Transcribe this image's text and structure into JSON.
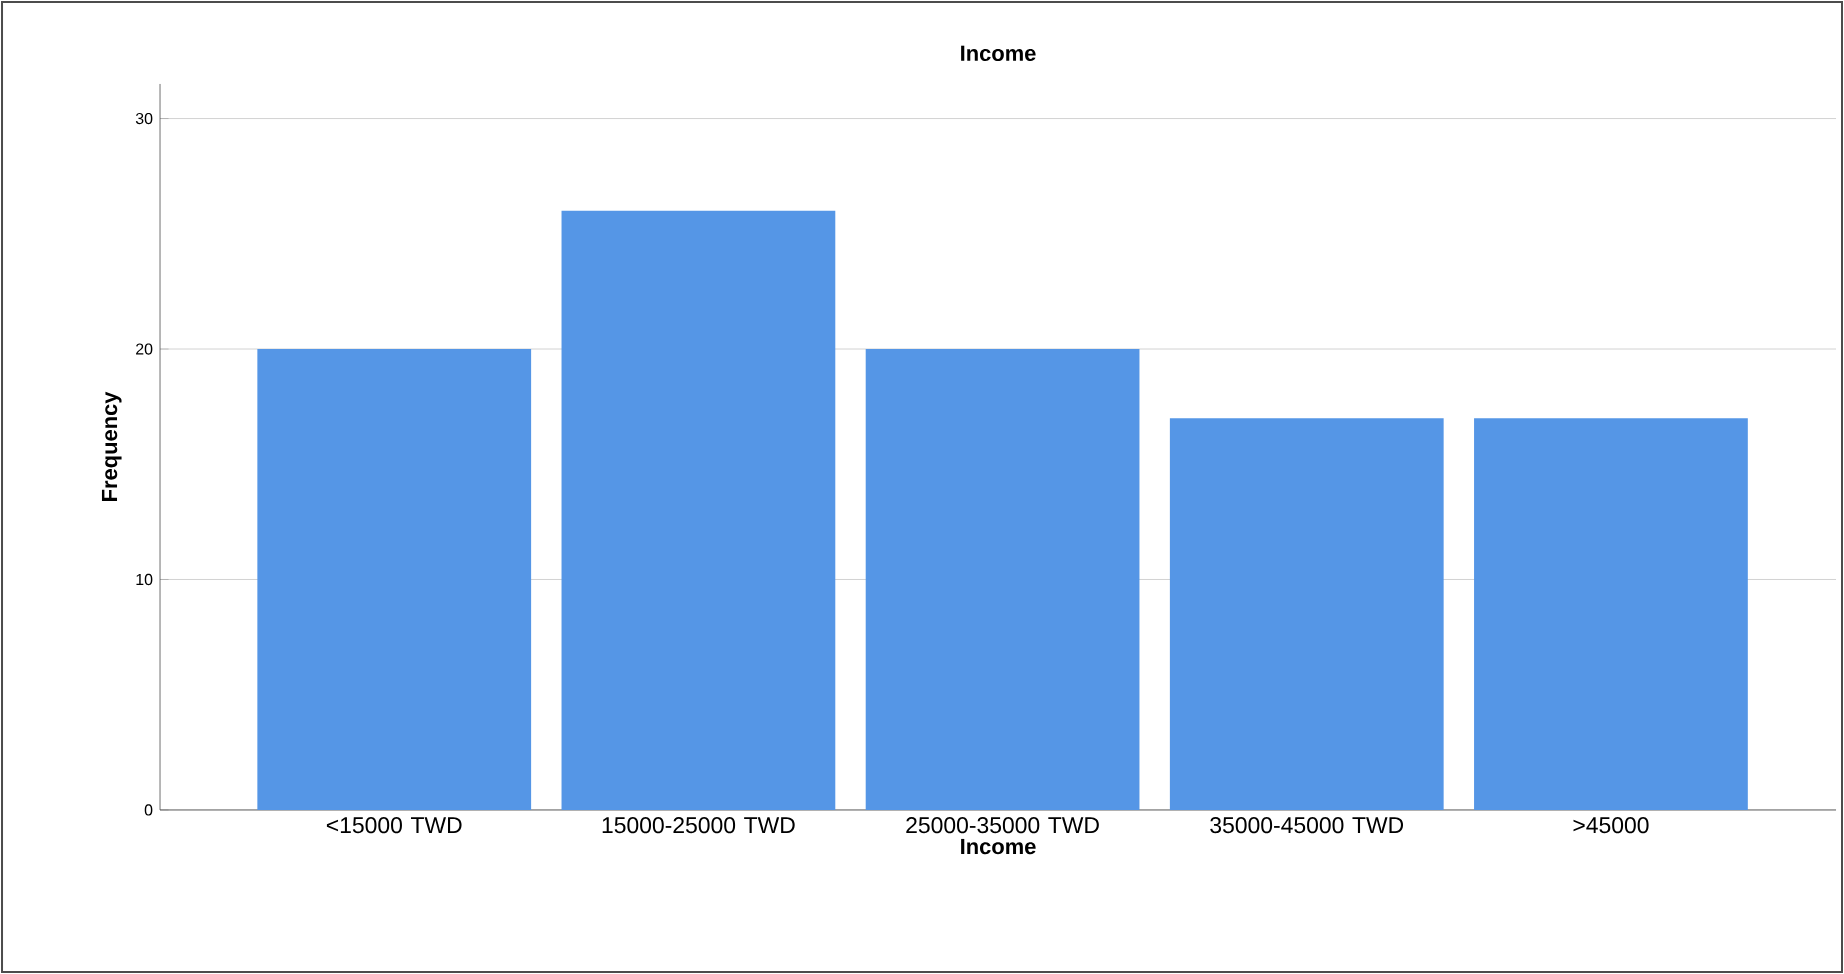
{
  "chart_data": {
    "type": "bar",
    "title": "Income",
    "xlabel": "Income",
    "ylabel": "Frequency",
    "categories": [
      "<15000 TWD",
      "15000-25000 TWD",
      "25000-35000 TWD",
      "35000-45000 TWD",
      ">45000"
    ],
    "values": [
      20,
      26,
      20,
      17,
      17
    ],
    "color": "#5596e6",
    "ylim": [
      0,
      31.5
    ],
    "yticks": [
      0,
      10,
      20,
      30
    ],
    "grid": "y"
  }
}
